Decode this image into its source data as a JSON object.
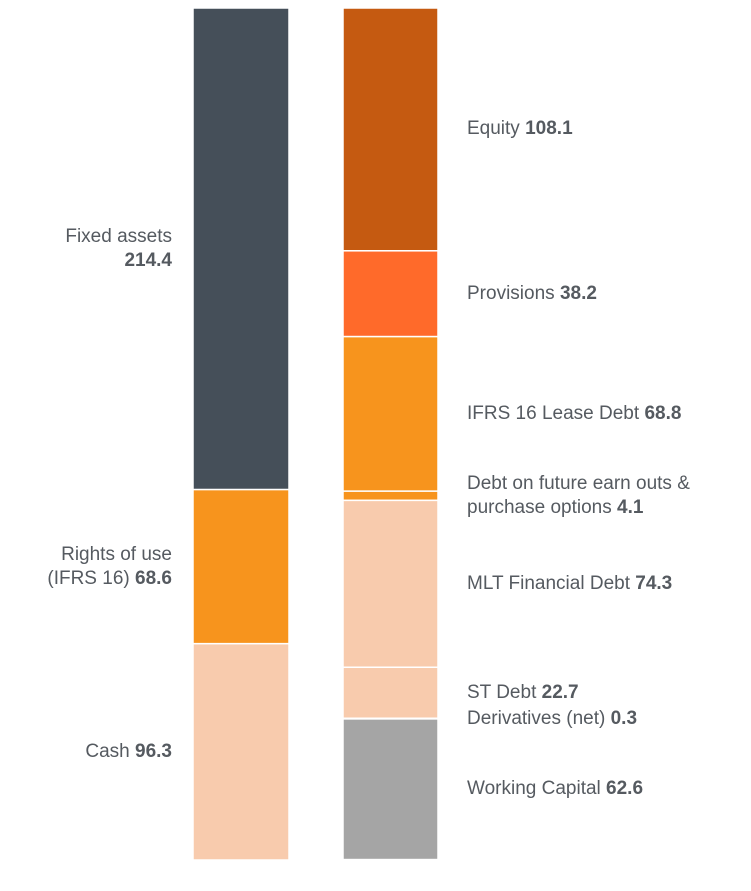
{
  "chart_data": {
    "type": "bar",
    "stacked": true,
    "stacks": [
      {
        "segments": [
          {
            "name": "Fixed assets",
            "value": 214.4,
            "color": "#454f59"
          },
          {
            "name": "Rights of use (IFRS 16)",
            "value": 68.6,
            "color": "#f7941d"
          },
          {
            "name": "Cash",
            "value": 96.3,
            "color": "#f8cbad"
          }
        ]
      },
      {
        "segments": [
          {
            "name": "Equity",
            "value": 108.1,
            "color": "#c55a11"
          },
          {
            "name": "Provisions",
            "value": 38.2,
            "color": "#ff6a2a"
          },
          {
            "name": "IFRS 16 Lease Debt",
            "value": 68.8,
            "color": "#f7941d"
          },
          {
            "name": "Debt on future earn outs & purchase options",
            "value": 4.1,
            "color": "#f7941d"
          },
          {
            "name": "MLT Financial Debt",
            "value": 74.3,
            "color": "#f8cbad"
          },
          {
            "name": "ST Debt",
            "value": 22.7,
            "color": "#f8cbad"
          },
          {
            "name": "Derivatives (net)",
            "value": 0.3,
            "color": "#a5a5a5"
          },
          {
            "name": "Working Capital",
            "value": 62.6,
            "color": "#a5a5a5"
          }
        ]
      }
    ]
  }
}
